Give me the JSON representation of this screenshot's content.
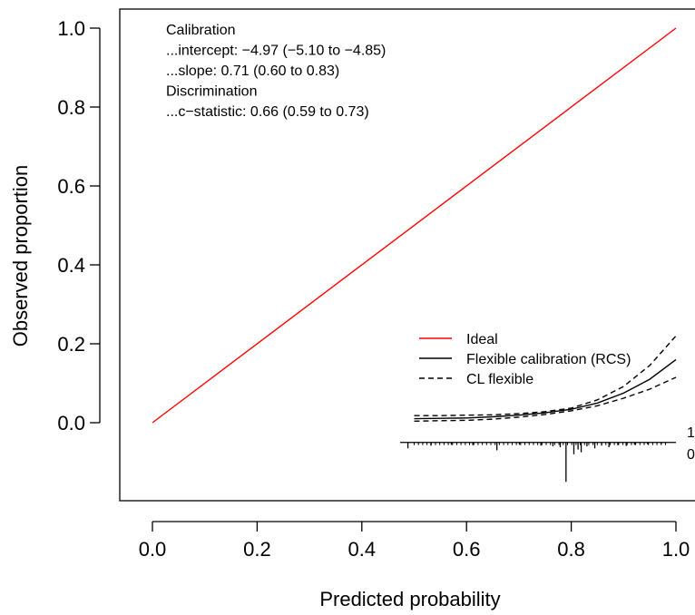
{
  "chart_data": {
    "type": "line",
    "xlabel": "Predicted probability",
    "ylabel": "Observed proportion",
    "xlim": [
      0,
      1
    ],
    "ylim": [
      -0.2,
      1.05
    ],
    "x_ticks": [
      0.0,
      0.2,
      0.4,
      0.6,
      0.8,
      1.0
    ],
    "x_tick_labels": [
      "0.0",
      "0.2",
      "0.4",
      "0.6",
      "0.8",
      "1.0"
    ],
    "y_ticks": [
      0.0,
      0.2,
      0.4,
      0.6,
      0.8,
      1.0
    ],
    "y_tick_labels": [
      "0.0",
      "0.2",
      "0.4",
      "0.6",
      "0.8",
      "1.0"
    ],
    "grid": false,
    "legend_placement": "bottom-right",
    "annotations": [
      "Calibration",
      "...intercept: −4.97 (−5.10 to −4.85)",
      "...slope: 0.71 (0.60 to 0.83)",
      "Discrimination",
      "...c−statistic: 0.66 (0.59 to 0.73)"
    ],
    "series": [
      {
        "name": "Ideal",
        "color": "#ff0000",
        "dash": "solid",
        "x": [
          0.0,
          1.0
        ],
        "y": [
          0.0,
          1.0
        ]
      },
      {
        "name": "Flexible calibration (RCS)",
        "color": "#000000",
        "dash": "solid",
        "x": [
          0.5,
          0.55,
          0.6,
          0.65,
          0.7,
          0.75,
          0.8,
          0.85,
          0.9,
          0.95,
          1.0
        ],
        "y": [
          0.01,
          0.011,
          0.012,
          0.015,
          0.019,
          0.025,
          0.034,
          0.05,
          0.075,
          0.11,
          0.16
        ]
      },
      {
        "name": "CL flexible",
        "color": "#000000",
        "dash": "dashed",
        "x": [
          0.5,
          0.55,
          0.6,
          0.65,
          0.7,
          0.75,
          0.8,
          0.85,
          0.9,
          0.95,
          1.0
        ],
        "y": [
          0.018,
          0.018,
          0.019,
          0.02,
          0.023,
          0.028,
          0.037,
          0.058,
          0.092,
          0.145,
          0.22
        ]
      },
      {
        "name": "",
        "color": "#000000",
        "dash": "dashed",
        "x": [
          0.5,
          0.55,
          0.6,
          0.65,
          0.7,
          0.75,
          0.8,
          0.85,
          0.9,
          0.95,
          1.0
        ],
        "y": [
          0.004,
          0.005,
          0.006,
          0.009,
          0.014,
          0.021,
          0.03,
          0.043,
          0.062,
          0.085,
          0.115
        ]
      }
    ],
    "rug": {
      "outcome_labels": [
        "1",
        "0"
      ],
      "baseline_y": -0.05,
      "x_range": [
        0.48,
        1.0
      ],
      "events_up": [],
      "nonevents_down": [
        {
          "x": 0.488,
          "h": 0.015
        },
        {
          "x": 0.532,
          "h": 0.008
        },
        {
          "x": 0.571,
          "h": 0.006
        },
        {
          "x": 0.612,
          "h": 0.007
        },
        {
          "x": 0.658,
          "h": 0.02
        },
        {
          "x": 0.701,
          "h": 0.006
        },
        {
          "x": 0.742,
          "h": 0.008
        },
        {
          "x": 0.765,
          "h": 0.01
        },
        {
          "x": 0.779,
          "h": 0.012
        },
        {
          "x": 0.79,
          "h": 0.1
        },
        {
          "x": 0.805,
          "h": 0.03
        },
        {
          "x": 0.813,
          "h": 0.018
        },
        {
          "x": 0.819,
          "h": 0.025
        },
        {
          "x": 0.83,
          "h": 0.01
        },
        {
          "x": 0.845,
          "h": 0.015
        },
        {
          "x": 0.858,
          "h": 0.008
        },
        {
          "x": 0.872,
          "h": 0.012
        },
        {
          "x": 0.889,
          "h": 0.007
        },
        {
          "x": 0.905,
          "h": 0.009
        },
        {
          "x": 0.921,
          "h": 0.006
        },
        {
          "x": 0.946,
          "h": 0.005
        },
        {
          "x": 0.972,
          "h": 0.004
        }
      ]
    }
  }
}
